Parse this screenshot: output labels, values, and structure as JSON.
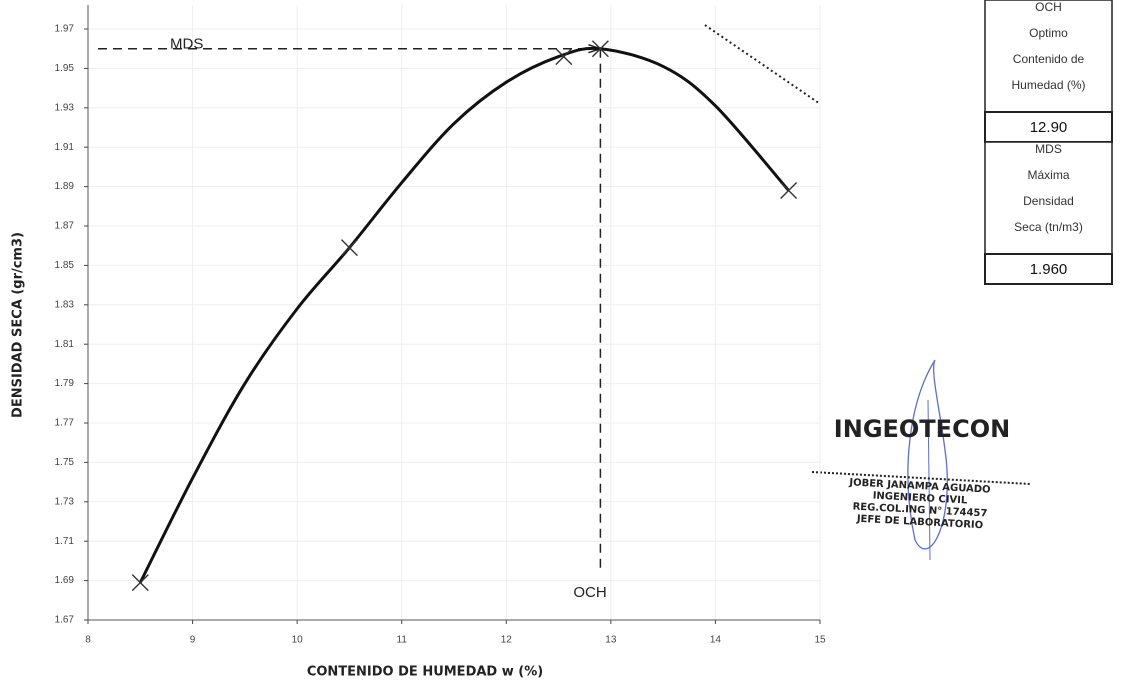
{
  "chart_data": {
    "type": "line",
    "x_label": "CONTENIDO DE HUMEDAD w (%)",
    "y_label": "DENSIDAD SECA (gr/cm3)",
    "xlim": [
      8,
      15
    ],
    "xticks": [
      8,
      9,
      10,
      11,
      12,
      13,
      14,
      15
    ],
    "ylim": [
      1.67,
      1.97
    ],
    "yticks": [
      1.67,
      1.69,
      1.71,
      1.73,
      1.75,
      1.77,
      1.79,
      1.81,
      1.83,
      1.85,
      1.87,
      1.89,
      1.91,
      1.93,
      1.95,
      1.97
    ],
    "grid": true,
    "color": "#111",
    "curve": {
      "x": [
        8.5,
        9,
        9.5,
        10,
        10.5,
        11,
        11.5,
        12,
        12.5,
        12.9,
        13.5,
        14,
        14.7
      ],
      "y": [
        1.689,
        1.742,
        1.79,
        1.828,
        1.859,
        1.892,
        1.922,
        1.943,
        1.956,
        1.96,
        1.951,
        1.931,
        1.888
      ]
    },
    "points": {
      "x": [
        8.5,
        10.5,
        12.55,
        12.9,
        14.7
      ],
      "y": [
        1.689,
        1.859,
        1.956,
        1.96,
        1.888
      ]
    },
    "reference_line": {
      "x": [
        13.9,
        15
      ],
      "y": [
        1.972,
        1.932
      ]
    },
    "peak": {
      "x": 12.9,
      "y": 1.96,
      "x_text": "OCH",
      "y_text": "MDS"
    }
  },
  "results": [
    {
      "label": "OCH Optimo Contenido de Humedad (%)",
      "lines": [
        "OCH",
        "Optimo",
        "Contenido de",
        "Humedad (%)"
      ],
      "value": 12.9,
      "value_label": "12.90"
    },
    {
      "label": "MDS Máxima Densidad Seca (tn/m3)",
      "lines": [
        "MDS",
        "Máxima",
        "Densidad",
        "Seca (tn/m3)"
      ],
      "value": 1.96,
      "value_label": "1.960"
    }
  ],
  "stamp": {
    "company": "INGEOTECON",
    "lines": [
      "JOBER JANAMPA AGUADO",
      "INGENIERO CIVIL",
      "REG.COL.ING N° 174457",
      "JEFE DE LABORATORIO"
    ]
  }
}
